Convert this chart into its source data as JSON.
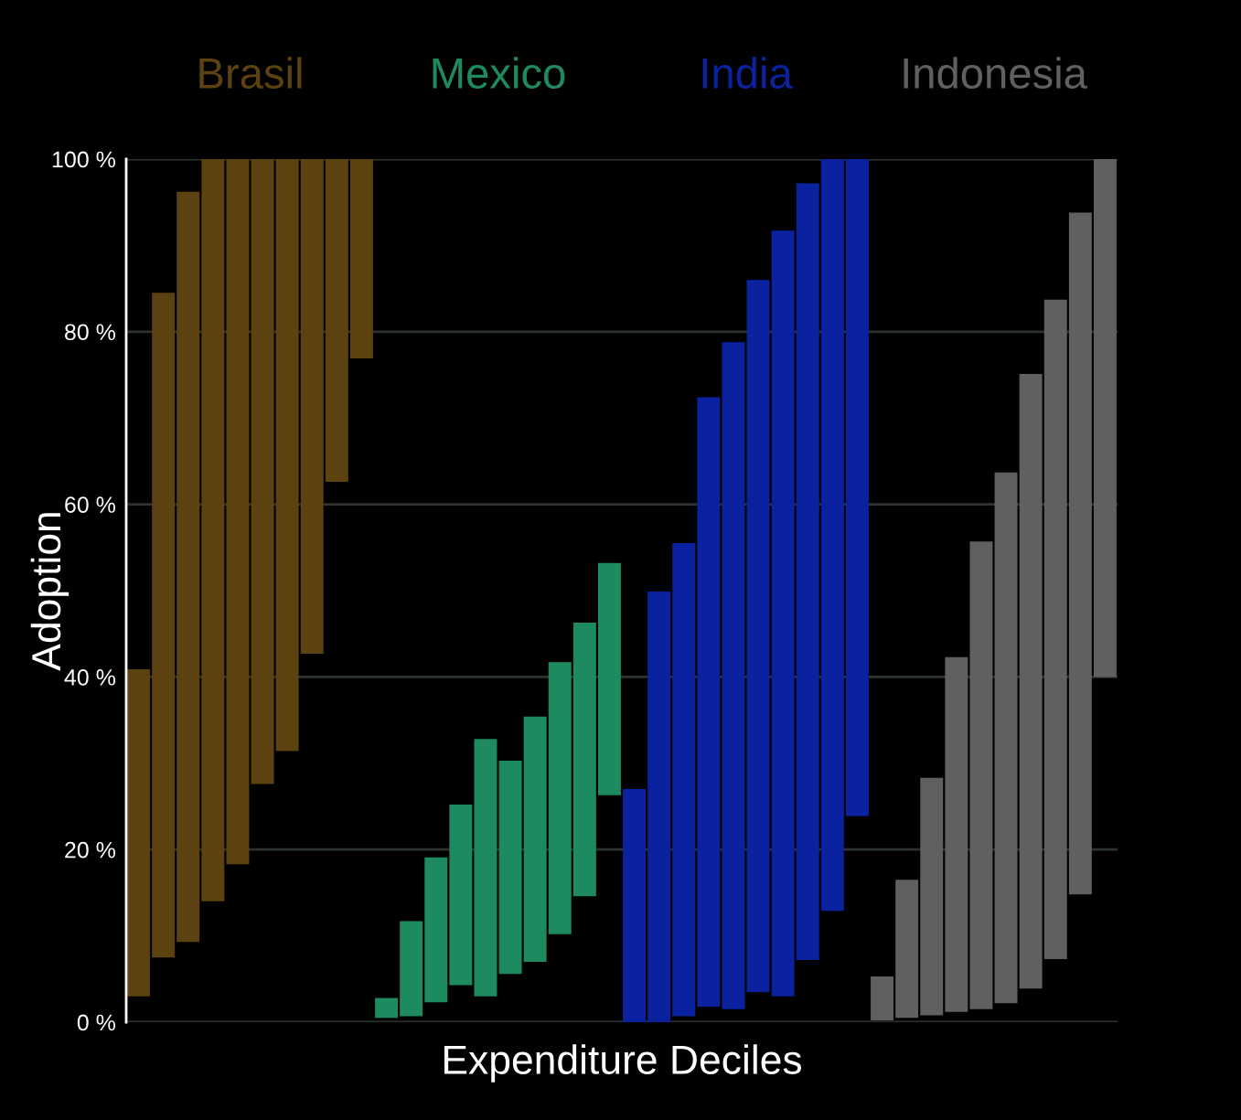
{
  "chart_data": {
    "type": "bar",
    "xlabel": "Expenditure Deciles",
    "ylabel": "Adoption",
    "categories": [
      null,
      null,
      null,
      null,
      null,
      null,
      null,
      null,
      null,
      null,
      null,
      null,
      null,
      null,
      null,
      null,
      null,
      null,
      null,
      null,
      null,
      null,
      null,
      null,
      null,
      null,
      null,
      null,
      null,
      null,
      null,
      null,
      null,
      null,
      null,
      null,
      null,
      null,
      null,
      null
    ],
    "ylim": [
      0,
      100
    ],
    "yticks": [
      {
        "value": 0,
        "label": "0 %"
      },
      {
        "value": 20,
        "label": "20 %"
      },
      {
        "value": 40,
        "label": "40 %"
      },
      {
        "value": 60,
        "label": "60 %"
      },
      {
        "value": 80,
        "label": "80 %"
      },
      {
        "value": 100,
        "label": "100 %"
      }
    ],
    "grid": "y",
    "legend": false,
    "series": [
      {
        "name": "Brasil",
        "color": "#5c4210",
        "values": [
          37.9,
          77.0,
          86.9,
          86.0,
          81.7,
          72.4,
          68.6,
          57.3,
          37.4,
          23.1,
          null,
          null,
          null,
          null,
          null,
          null,
          null,
          null,
          null,
          null,
          null,
          null,
          null,
          null,
          null,
          null,
          null,
          null,
          null,
          null,
          null,
          null,
          null,
          null,
          null,
          null,
          null,
          null,
          null,
          null
        ],
        "base": [
          3.0,
          7.5,
          9.3,
          14.0,
          18.3,
          27.6,
          31.4,
          42.7,
          62.6,
          76.9,
          null,
          null,
          null,
          null,
          null,
          null,
          null,
          null,
          null,
          null,
          null,
          null,
          null,
          null,
          null,
          null,
          null,
          null,
          null,
          null,
          null,
          null,
          null,
          null,
          null,
          null,
          null,
          null,
          null,
          null
        ]
      },
      {
        "name": "Mexico",
        "color": "#1d8a60",
        "values": [
          null,
          null,
          null,
          null,
          null,
          null,
          null,
          null,
          null,
          null,
          2.3,
          11.0,
          16.8,
          20.9,
          29.8,
          24.7,
          28.4,
          31.5,
          31.7,
          26.9,
          null,
          null,
          null,
          null,
          null,
          null,
          null,
          null,
          null,
          null,
          null,
          null,
          null,
          null,
          null,
          null,
          null,
          null,
          null,
          null
        ],
        "base": [
          null,
          null,
          null,
          null,
          null,
          null,
          null,
          null,
          null,
          null,
          0.5,
          0.7,
          2.3,
          4.3,
          3.0,
          5.6,
          7.0,
          10.2,
          14.6,
          26.3,
          null,
          null,
          null,
          null,
          null,
          null,
          null,
          null,
          null,
          null,
          null,
          null,
          null,
          null,
          null,
          null,
          null,
          null,
          null,
          null
        ]
      },
      {
        "name": "India",
        "color": "#0a22a0",
        "values": [
          null,
          null,
          null,
          null,
          null,
          null,
          null,
          null,
          null,
          null,
          null,
          null,
          null,
          null,
          null,
          null,
          null,
          null,
          null,
          null,
          27.0,
          49.9,
          54.8,
          70.6,
          77.3,
          82.5,
          88.7,
          90.0,
          87.1,
          76.1,
          null,
          null,
          null,
          null,
          null,
          null,
          null,
          null,
          null,
          null
        ],
        "base": [
          null,
          null,
          null,
          null,
          null,
          null,
          null,
          null,
          null,
          null,
          null,
          null,
          null,
          null,
          null,
          null,
          null,
          null,
          null,
          null,
          0,
          0,
          0.7,
          1.8,
          1.5,
          3.5,
          3.0,
          7.2,
          12.9,
          23.9,
          null,
          null,
          null,
          null,
          null,
          null,
          null,
          null,
          null,
          null
        ]
      },
      {
        "name": "Indonesia",
        "color": "#606060",
        "values": [
          null,
          null,
          null,
          null,
          null,
          null,
          null,
          null,
          null,
          null,
          null,
          null,
          null,
          null,
          null,
          null,
          null,
          null,
          null,
          null,
          null,
          null,
          null,
          null,
          null,
          null,
          null,
          null,
          null,
          null,
          5.1,
          16.0,
          27.5,
          41.1,
          54.2,
          61.5,
          71.2,
          76.4,
          79.0,
          60.0
        ],
        "base": [
          null,
          null,
          null,
          null,
          null,
          null,
          null,
          null,
          null,
          null,
          null,
          null,
          null,
          null,
          null,
          null,
          null,
          null,
          null,
          null,
          null,
          null,
          null,
          null,
          null,
          null,
          null,
          null,
          null,
          null,
          0.2,
          0.5,
          0.8,
          1.2,
          1.5,
          2.2,
          3.9,
          7.3,
          14.8,
          40.0
        ]
      }
    ]
  }
}
